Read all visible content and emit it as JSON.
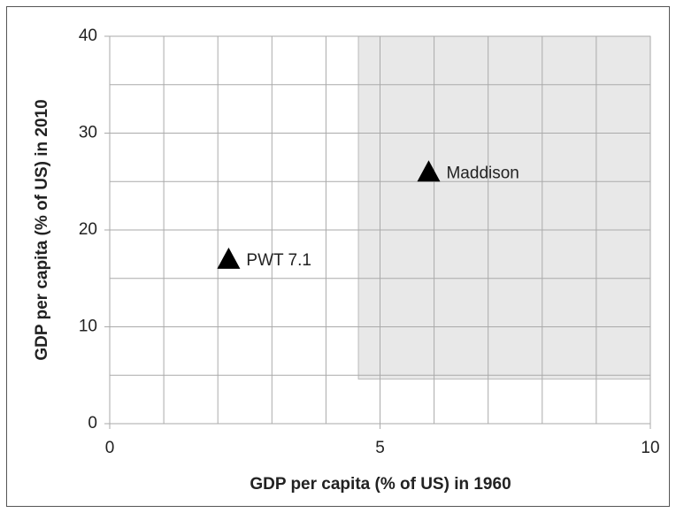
{
  "chart_data": {
    "type": "scatter",
    "x_label": "GDP per capita (% of US) in 1960",
    "y_label": "GDP per capita (% of US) in 2010",
    "x": [
      2.2,
      5.9
    ],
    "values": [
      17,
      26
    ],
    "point_labels": [
      "PWT 7.1",
      "Maddison"
    ],
    "color": "#000000",
    "marker": "triangle",
    "xlim": [
      0,
      10
    ],
    "ylim": [
      0,
      40
    ],
    "xticks": [
      0,
      5,
      10
    ],
    "yticks": [
      0,
      10,
      20,
      30,
      40
    ],
    "x_minor_grid": [
      1,
      2,
      3,
      4,
      6,
      7,
      8,
      9
    ],
    "y_minor_grid": [
      5,
      15,
      25,
      35
    ],
    "grid": true,
    "shaded_region": {
      "x": [
        4.6,
        10
      ],
      "y": [
        4.6,
        40
      ],
      "color": "#e8e8e8"
    }
  }
}
